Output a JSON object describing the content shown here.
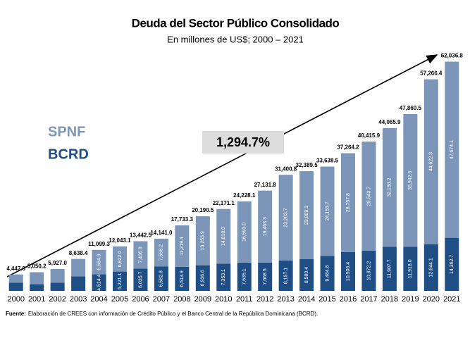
{
  "chart_data": {
    "type": "stacked_bar",
    "title": "Deuda del Sector Público Consolidado",
    "subtitle": "En millones de US$; 2000 – 2021",
    "categories": [
      "2000",
      "2001",
      "2002",
      "2003",
      "2004",
      "2005",
      "2006",
      "2007",
      "2008",
      "2009",
      "2010",
      "2011",
      "2012",
      "2013",
      "2014",
      "2015",
      "2016",
      "2017",
      "2018",
      "2019",
      "2020",
      "2021"
    ],
    "series": [
      {
        "name": "BCRD",
        "color": "#1f4e85",
        "values": [
          2200,
          1800,
          2200,
          3900,
          4514.4,
          5221.1,
          6035.7,
          6582.8,
          6513.9,
          6936.6,
          7353.1,
          7635.1,
          7668.5,
          8197.1,
          8580.4,
          9484.8,
          10506.4,
          10872.2,
          11907.7,
          11918.0,
          12644.1,
          14362.7
        ],
        "value_labels": [
          null,
          null,
          null,
          null,
          "4,514.4",
          "5,221.1",
          "6,035.7",
          "6,582.8",
          "6,513.9",
          "6,936.6",
          "7,353.1",
          "7,635.1",
          "7,668.5",
          "8,197.1",
          "8,580.4",
          "9,484.8",
          "10,506.4",
          "10,872.2",
          "11,907.7",
          "11,918.0",
          "12,644.1",
          "14,362.7"
        ]
      },
      {
        "name": "SPNF",
        "color": "#7b96b8",
        "values": [
          2247.9,
          3250.2,
          3727.0,
          4738.4,
          6584.9,
          6822.0,
          7406.8,
          7558.2,
          11219.4,
          13253.9,
          14818.0,
          16593.0,
          19463.3,
          23203.7,
          23809.1,
          24153.7,
          26757.8,
          29543.7,
          32158.2,
          35942.5,
          44622.3,
          47674.1
        ],
        "value_labels": [
          null,
          null,
          null,
          null,
          "6,584.9",
          "6,822.0",
          "7,406.8",
          "7,558.2",
          "11,219.4",
          "13,253.9",
          "14,818.0",
          "16,593.0",
          "19,463.3",
          "23,203.7",
          "23,809.1",
          "24,153.7",
          "26,757.8",
          "29,543.7",
          "32,158.2",
          "35,942.5",
          "44,622.3",
          "47,674.1"
        ]
      }
    ],
    "totals": [
      4447.9,
      5050.2,
      5927.0,
      8638.4,
      11099.3,
      12043.1,
      13442.5,
      14141.0,
      17733.3,
      20190.5,
      22171.1,
      24228.1,
      27131.8,
      31400.8,
      32389.5,
      33638.5,
      37264.2,
      40415.9,
      44065.9,
      47860.5,
      57266.4,
      62036.8
    ],
    "total_labels": [
      "4,447.9",
      "5,050.2",
      "5,927.0",
      "8,638.4",
      "11,099.3",
      "12,043.1",
      "13,442.5",
      "14,141.0",
      "17,733.3",
      "20,190.5",
      "22,171.1",
      "24,228.1",
      "27,131.8",
      "31,400.8",
      "32,389.5",
      "33,638.5",
      "37,264.2",
      "40,415.9",
      "44,065.9",
      "47,860.5",
      "57,266.4",
      "62,036.8"
    ],
    "annotation": "1,294.7%",
    "ylim": [
      0,
      65000
    ],
    "source_label": "Fuente:",
    "source": "Elaboración de CREES con información de Crédito Público y el Banco Central de la República Dominicana (BCRD)."
  }
}
